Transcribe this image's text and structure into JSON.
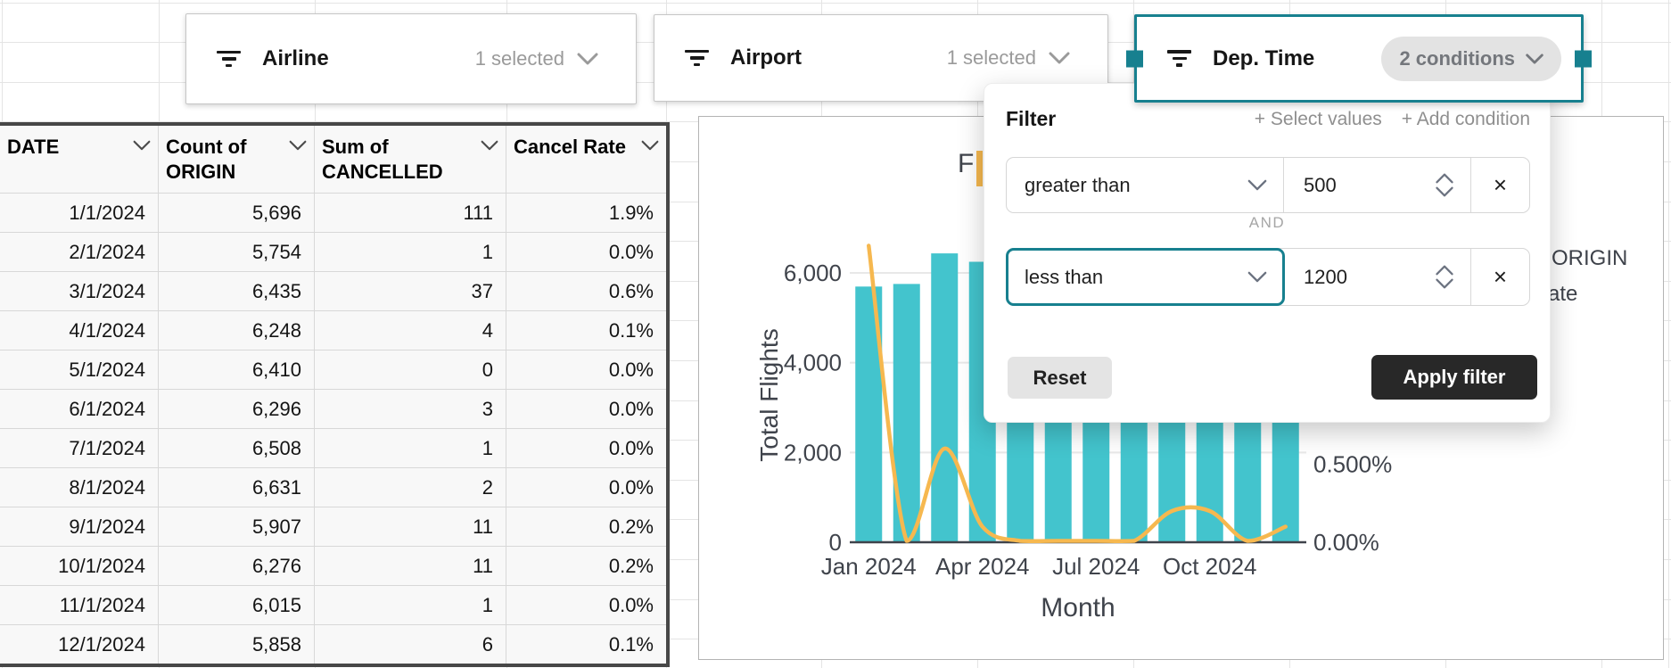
{
  "filters": [
    {
      "label": "Airline",
      "status": "1 selected"
    },
    {
      "label": "Airport",
      "status": "1 selected"
    },
    {
      "label": "Dep. Time",
      "status": "2 conditions",
      "selected": true
    }
  ],
  "popup": {
    "title": "Filter",
    "select_values_link": "+ Select values",
    "add_condition_link": "+ Add condition",
    "and_label": "AND",
    "conditions": [
      {
        "operator": "greater than",
        "value": "500"
      },
      {
        "operator": "less than",
        "value": "1200",
        "focused": true
      }
    ],
    "reset_label": "Reset",
    "apply_label": "Apply filter"
  },
  "table": {
    "columns": [
      "DATE",
      "Count of ORIGIN",
      "Sum of CANCELLED",
      "Cancel Rate"
    ],
    "rows": [
      [
        "1/1/2024",
        "5,696",
        "111",
        "1.9%"
      ],
      [
        "2/1/2024",
        "5,754",
        "1",
        "0.0%"
      ],
      [
        "3/1/2024",
        "6,435",
        "37",
        "0.6%"
      ],
      [
        "4/1/2024",
        "6,248",
        "4",
        "0.1%"
      ],
      [
        "5/1/2024",
        "6,410",
        "0",
        "0.0%"
      ],
      [
        "6/1/2024",
        "6,296",
        "3",
        "0.0%"
      ],
      [
        "7/1/2024",
        "6,508",
        "1",
        "0.0%"
      ],
      [
        "8/1/2024",
        "6,631",
        "2",
        "0.0%"
      ],
      [
        "9/1/2024",
        "5,907",
        "11",
        "0.2%"
      ],
      [
        "10/1/2024",
        "6,276",
        "11",
        "0.2%"
      ],
      [
        "11/1/2024",
        "6,015",
        "1",
        "0.0%"
      ],
      [
        "12/1/2024",
        "5,858",
        "6",
        "0.1%"
      ]
    ]
  },
  "chart_data": {
    "type": "bar+line",
    "title_visible": "F",
    "xlabel": "Month",
    "ylabel": "Total Flights",
    "categories": [
      "1/2024",
      "2/2024",
      "3/2024",
      "4/2024",
      "5/2024",
      "6/2024",
      "7/2024",
      "8/2024",
      "9/2024",
      "10/2024",
      "11/2024",
      "12/2024"
    ],
    "series": [
      {
        "name": "Total Flights (bars)",
        "axis": "left",
        "values": [
          5696,
          5754,
          6435,
          6248,
          6410,
          6296,
          6508,
          6631,
          5907,
          6276,
          6015,
          5858
        ]
      },
      {
        "name": "Cancel Rate % (line)",
        "axis": "right",
        "values": [
          1.9,
          0.0,
          0.6,
          0.1,
          0.0,
          0.0,
          0.0,
          0.0,
          0.2,
          0.2,
          0.0,
          0.1
        ]
      }
    ],
    "ylim": [
      0,
      6600
    ],
    "y_ticks": [
      {
        "label": "6,000",
        "value": 6000
      },
      {
        "label": "4,000",
        "value": 4000
      },
      {
        "label": "2,000",
        "value": 2000
      },
      {
        "label": "0",
        "value": 0
      }
    ],
    "y2_ticks": [
      {
        "label": "0.500%",
        "value": 0.5
      },
      {
        "label": "0.00%",
        "value": 0.0
      }
    ],
    "x_ticks": [
      {
        "label": "Jan 2024",
        "index": 0
      },
      {
        "label": "Apr 2024",
        "index": 3
      },
      {
        "label": "Jul 2024",
        "index": 6
      },
      {
        "label": "Oct 2024",
        "index": 9
      }
    ],
    "legend_visible_fragments": [
      "ORIGIN",
      "ate"
    ],
    "bar_color": "#43C4CD",
    "line_color": "#F6B84F",
    "grid": true,
    "legend_position": "right (mostly occluded by popup)"
  },
  "accent_colors": {
    "selection_teal": "#17808F",
    "apply_button": "#282828"
  }
}
